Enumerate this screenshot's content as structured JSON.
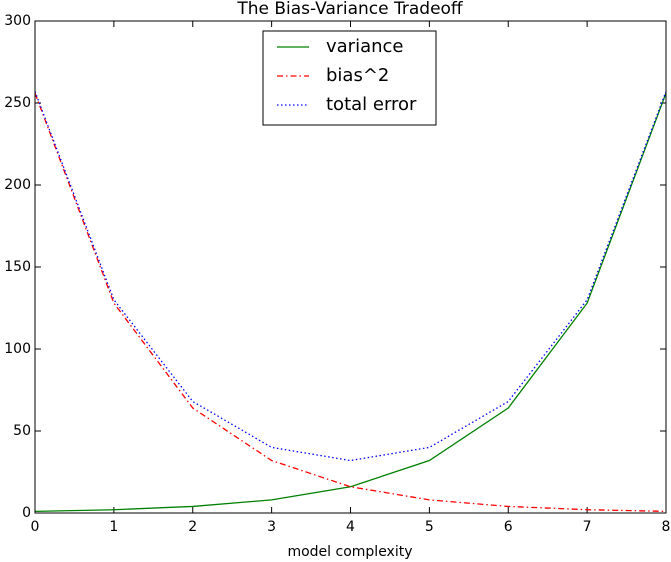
{
  "chart_data": {
    "type": "line",
    "title": "The Bias-Variance Tradeoff",
    "x_label": "model complexity",
    "x": [
      0,
      1,
      2,
      3,
      4,
      5,
      6,
      7,
      8
    ],
    "series": [
      {
        "name": "variance",
        "color": "#008000",
        "dash": "solid",
        "values": [
          1,
          2,
          4,
          8,
          16,
          32,
          64,
          128,
          256
        ]
      },
      {
        "name": "bias^2",
        "color": "#ff0000",
        "dash": "dashdot",
        "values": [
          256,
          128,
          64,
          32,
          16,
          8,
          4,
          2,
          1
        ]
      },
      {
        "name": "total error",
        "color": "#0000ff",
        "dash": "dotted",
        "values": [
          257,
          130,
          68,
          40,
          32,
          40,
          68,
          130,
          257
        ]
      }
    ],
    "xlim": [
      0,
      8
    ],
    "xticks": [
      0,
      1,
      2,
      3,
      4,
      5,
      6,
      7,
      8
    ],
    "ylim": [
      0,
      300
    ],
    "yticks": [
      0,
      50,
      100,
      150,
      200,
      250,
      300
    ],
    "legend": "upper center",
    "grid": false
  }
}
